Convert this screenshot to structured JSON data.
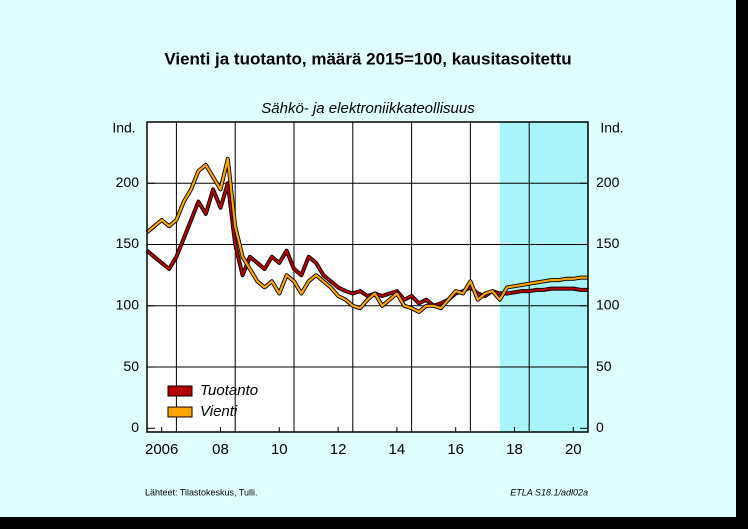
{
  "chart_data": {
    "type": "line",
    "title": "Vienti ja tuotanto, määrä 2015=100, kausitasoitettu",
    "subtitle": "Sähkö- ja elektroniikkateollisuus",
    "y_label": "Ind.",
    "source": "Lähteet:  Tilastokeskus, Tulli.",
    "code": "ETLA S18.1/adl02a",
    "forecast_start": 2018,
    "xlim": [
      2006,
      2021
    ],
    "ylim": [
      -3,
      250
    ],
    "xticks": [
      {
        "value": 2006.5,
        "label": "2006"
      },
      {
        "value": 2008.5,
        "label": "08"
      },
      {
        "value": 2010.5,
        "label": "10"
      },
      {
        "value": 2012.5,
        "label": "12"
      },
      {
        "value": 2014.5,
        "label": "14"
      },
      {
        "value": 2016.5,
        "label": "16"
      },
      {
        "value": 2018.5,
        "label": "18"
      },
      {
        "value": 2020.5,
        "label": "20"
      }
    ],
    "xgrid": [
      2007,
      2009,
      2011,
      2013,
      2015,
      2017,
      2019
    ],
    "yticks": [
      0,
      50,
      100,
      150,
      200
    ],
    "grid": true,
    "x": [
      2006,
      2006.25,
      2006.5,
      2006.75,
      2007,
      2007.25,
      2007.5,
      2007.75,
      2008,
      2008.25,
      2008.5,
      2008.75,
      2009,
      2009.25,
      2009.5,
      2009.75,
      2010,
      2010.25,
      2010.5,
      2010.75,
      2011,
      2011.25,
      2011.5,
      2011.75,
      2012,
      2012.25,
      2012.5,
      2012.75,
      2013,
      2013.25,
      2013.5,
      2013.75,
      2014,
      2014.25,
      2014.5,
      2014.75,
      2015,
      2015.25,
      2015.5,
      2015.75,
      2016,
      2016.25,
      2016.5,
      2016.75,
      2017,
      2017.25,
      2017.5,
      2017.75,
      2018,
      2018.25,
      2018.5,
      2018.75,
      2019,
      2019.25,
      2019.5,
      2019.75,
      2020,
      2020.25,
      2020.5,
      2020.75,
      2021
    ],
    "series": [
      {
        "name": "Tuotanto",
        "color": "#b40000",
        "values": [
          145,
          140,
          135,
          130,
          140,
          155,
          170,
          185,
          175,
          195,
          180,
          200,
          150,
          125,
          140,
          135,
          130,
          140,
          135,
          145,
          130,
          125,
          140,
          135,
          125,
          120,
          115,
          112,
          110,
          112,
          108,
          110,
          108,
          110,
          112,
          105,
          108,
          102,
          105,
          100,
          102,
          105,
          110,
          112,
          115,
          110,
          108,
          112,
          110,
          110,
          111,
          112,
          112,
          113,
          113,
          114,
          114,
          114,
          114,
          113,
          113
        ]
      },
      {
        "name": "Vienti",
        "color": "#ffa500",
        "values": [
          160,
          165,
          170,
          165,
          170,
          185,
          195,
          210,
          215,
          205,
          195,
          220,
          165,
          140,
          130,
          120,
          115,
          120,
          110,
          125,
          120,
          110,
          120,
          125,
          120,
          115,
          108,
          105,
          100,
          98,
          105,
          110,
          100,
          105,
          110,
          100,
          98,
          95,
          100,
          100,
          98,
          105,
          112,
          110,
          120,
          105,
          110,
          112,
          105,
          115,
          116,
          117,
          118,
          119,
          120,
          121,
          121,
          122,
          122,
          123,
          123
        ]
      }
    ]
  }
}
